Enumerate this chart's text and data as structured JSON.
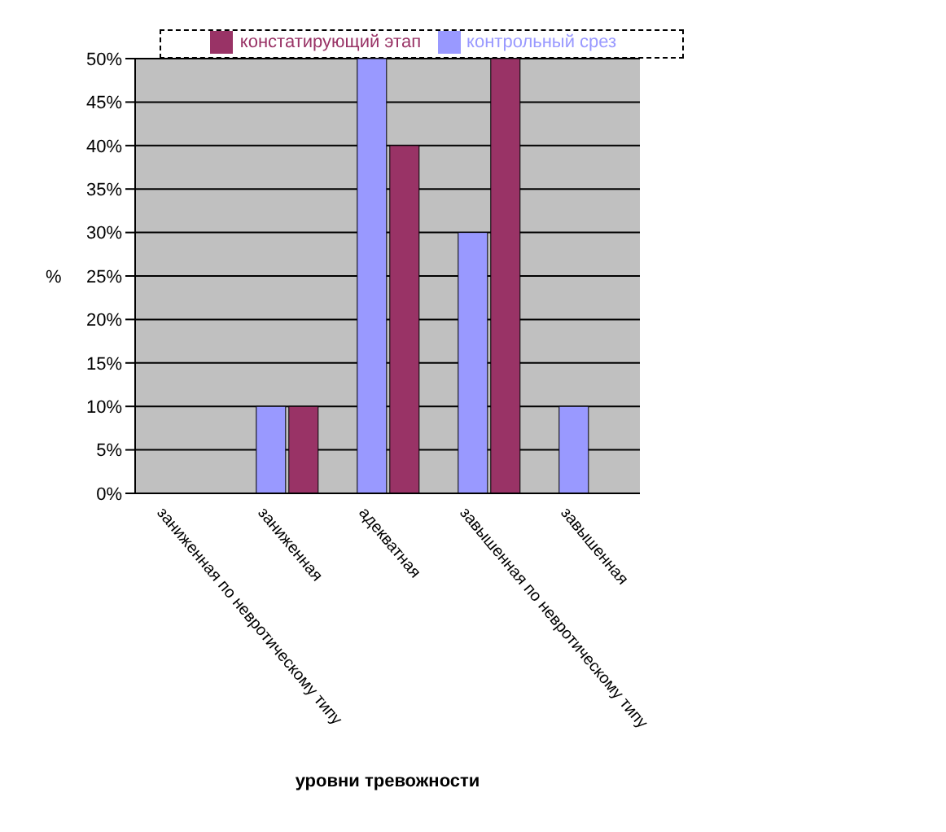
{
  "chart_data": {
    "type": "bar",
    "xlabel": "уровни тревожности",
    "ylabel": "%",
    "categories": [
      "заниженная по невротическому типу",
      "заниженная",
      "адекватная",
      "завышенная по невротическому типу",
      "завышенная"
    ],
    "series": [
      {
        "name": "контрольный срез",
        "color": "#9999ff",
        "values": [
          0,
          10,
          50,
          30,
          10
        ]
      },
      {
        "name": "констатирующий этап",
        "color": "#993366",
        "values": [
          0,
          10,
          40,
          50,
          0
        ]
      }
    ],
    "ylim": [
      0,
      50
    ],
    "yticks": [
      {
        "value": 0,
        "label": "0%"
      },
      {
        "value": 5,
        "label": "5%"
      },
      {
        "value": 10,
        "label": "10%"
      },
      {
        "value": 15,
        "label": "15%"
      },
      {
        "value": 20,
        "label": "20%"
      },
      {
        "value": 25,
        "label": "25%"
      },
      {
        "value": 30,
        "label": "30%"
      },
      {
        "value": 35,
        "label": "35%"
      },
      {
        "value": 40,
        "label": "40%"
      },
      {
        "value": 45,
        "label": "45%"
      },
      {
        "value": 50,
        "label": "50%"
      }
    ],
    "grid": "y",
    "legend": "top"
  }
}
